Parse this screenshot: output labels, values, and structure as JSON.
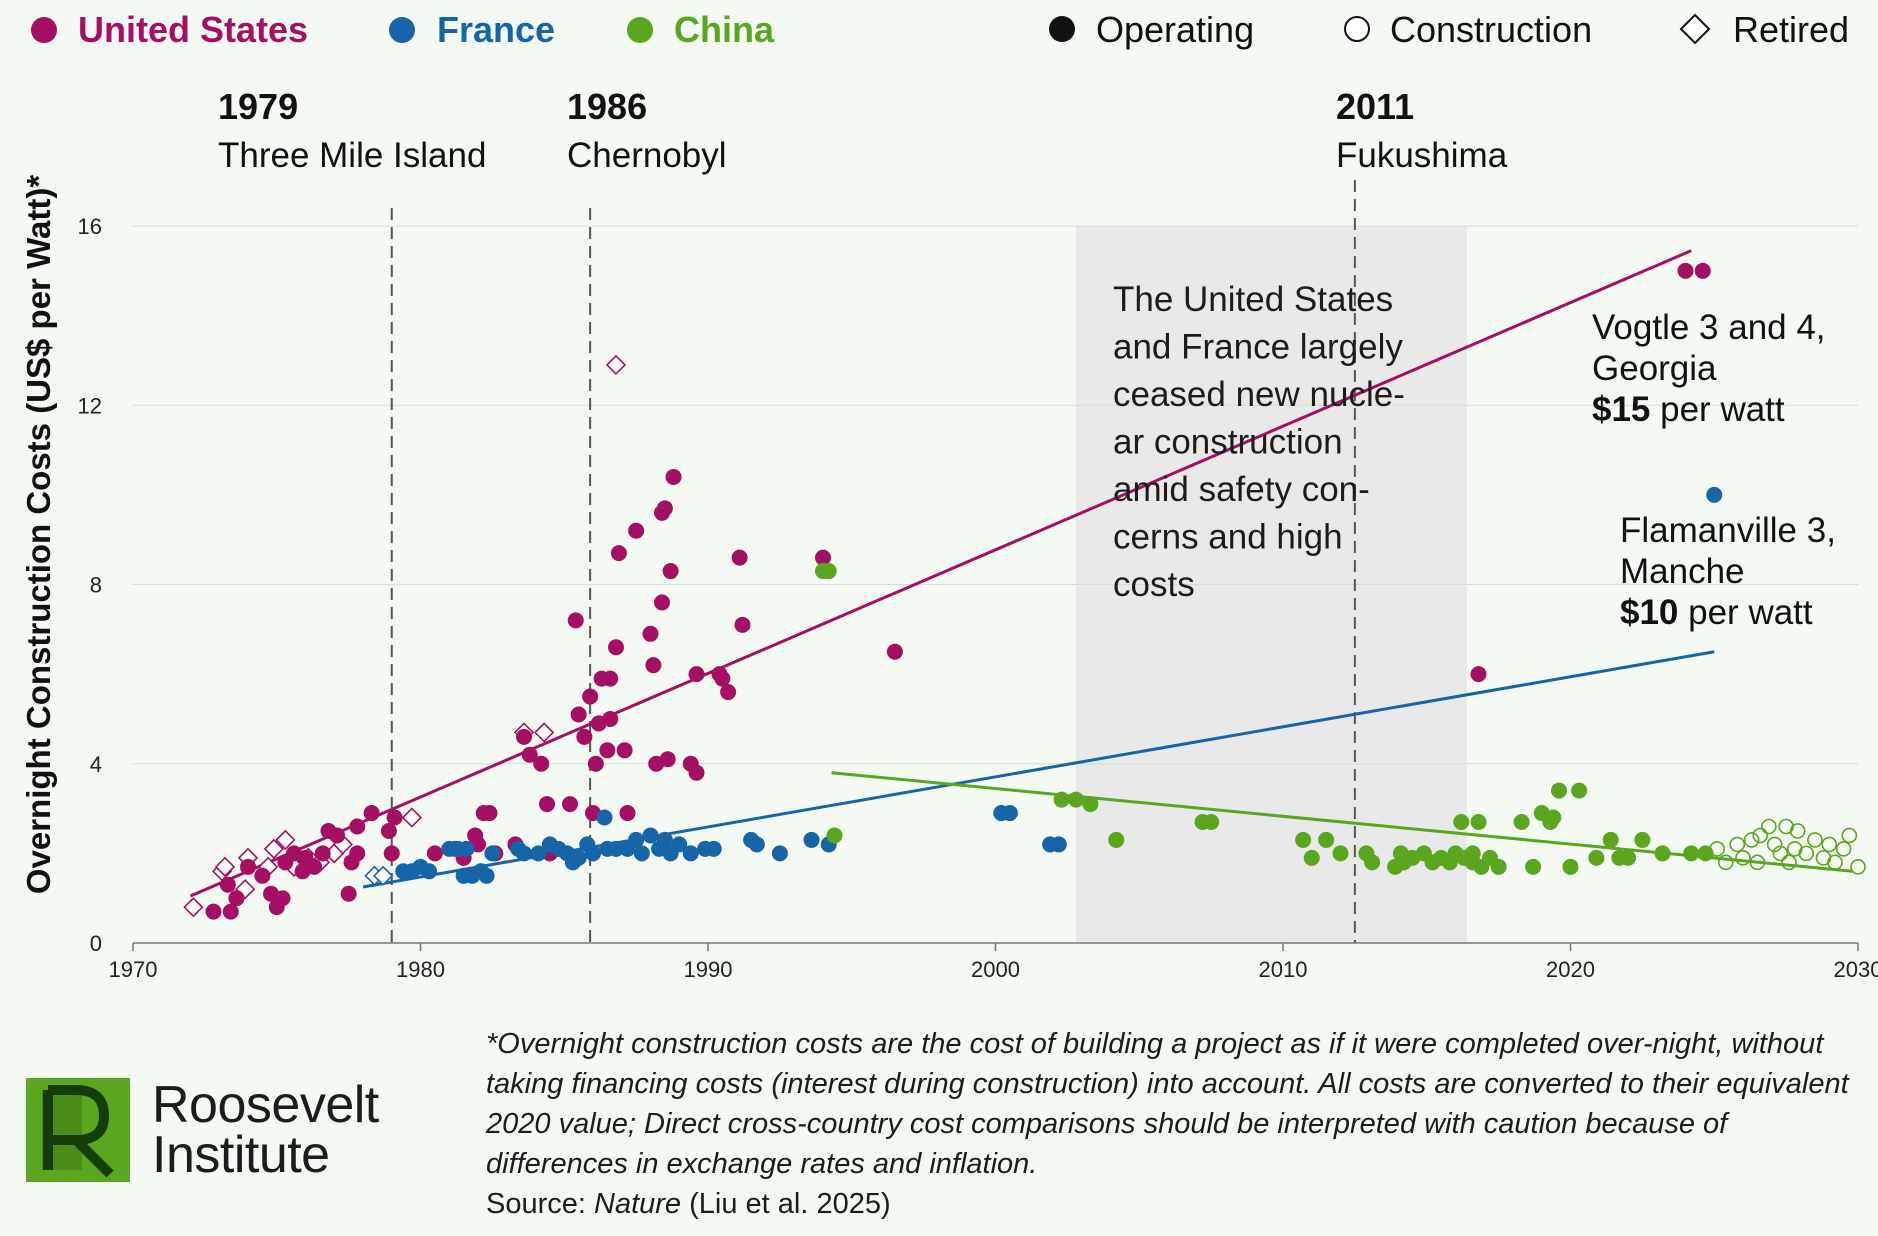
{
  "chart_data": {
    "type": "scatter",
    "ylabel": "Overnight Construction Costs (US$ per Watt)*",
    "xlim": [
      1970,
      2030
    ],
    "ylim": [
      0,
      16
    ],
    "x_ticks": [
      "1970",
      "1980",
      "1990",
      "2000",
      "2010",
      "2020",
      "2030"
    ],
    "y_ticks": [
      "0",
      "4",
      "8",
      "12",
      "16"
    ],
    "grid": true,
    "legend_countries": [
      {
        "name": "United States",
        "color": "#a50f63"
      },
      {
        "name": "France",
        "color": "#1565a8"
      },
      {
        "name": "China",
        "color": "#5aa61e"
      }
    ],
    "legend_status": [
      {
        "name": "Operating",
        "shape": "filled-circle"
      },
      {
        "name": "Construction",
        "shape": "open-circle"
      },
      {
        "name": "Retired",
        "shape": "diamond"
      }
    ],
    "events": [
      {
        "year": "1979",
        "label": "Three Mile Island",
        "x": 1979.0
      },
      {
        "year": "1986",
        "label": "Chernobyl",
        "x": 1985.9
      },
      {
        "year": "2011",
        "label": "Fukushima",
        "x": 2012.5
      }
    ],
    "shaded_period": {
      "x0": 2002.8,
      "x1": 2016.4
    },
    "shaded_text": [
      "The United States",
      "and France largely",
      "ceased new nucle-",
      "ar construction",
      "amid safety con-",
      "cerns and high",
      "costs"
    ],
    "annotations": [
      {
        "lines": [
          "Vogtle 3 and 4,",
          "Georgia"
        ],
        "bold": "$15",
        "rest": " per watt"
      },
      {
        "lines": [
          "Flamanville 3,",
          "Manche"
        ],
        "bold": "$10",
        "rest": " per watt"
      }
    ],
    "trend_lines": [
      {
        "name": "United States",
        "x": [
          1972.0,
          2024.2
        ],
        "y": [
          1.05,
          15.45
        ]
      },
      {
        "name": "France",
        "x": [
          1978.0,
          2025.0
        ],
        "y": [
          1.25,
          6.5
        ]
      },
      {
        "name": "China",
        "x": [
          1994.3,
          2029.8
        ],
        "y": [
          3.8,
          1.6
        ]
      }
    ],
    "series": [
      {
        "name": "United States",
        "status": "Operating",
        "points": [
          [
            1972.8,
            0.7
          ],
          [
            1973.4,
            0.7
          ],
          [
            1973.6,
            1.0
          ],
          [
            1973.3,
            1.3
          ],
          [
            1974.0,
            1.7
          ],
          [
            1974.5,
            1.5
          ],
          [
            1974.8,
            1.1
          ],
          [
            1975.0,
            0.8
          ],
          [
            1975.2,
            1.0
          ],
          [
            1975.3,
            1.8
          ],
          [
            1975.6,
            2.0
          ],
          [
            1975.9,
            1.6
          ],
          [
            1976.0,
            1.9
          ],
          [
            1976.3,
            1.7
          ],
          [
            1976.6,
            2.0
          ],
          [
            1976.8,
            2.5
          ],
          [
            1977.1,
            2.4
          ],
          [
            1977.5,
            1.1
          ],
          [
            1977.6,
            1.8
          ],
          [
            1977.8,
            2.0
          ],
          [
            1977.8,
            2.6
          ],
          [
            1978.3,
            2.9
          ],
          [
            1978.9,
            2.5
          ],
          [
            1979.0,
            2.0
          ],
          [
            1979.1,
            2.8
          ],
          [
            1980.5,
            2.0
          ],
          [
            1981.2,
            2.1
          ],
          [
            1981.5,
            1.9
          ],
          [
            1981.9,
            2.4
          ],
          [
            1982.0,
            2.2
          ],
          [
            1982.2,
            2.9
          ],
          [
            1982.4,
            2.9
          ],
          [
            1982.6,
            2.0
          ],
          [
            1983.3,
            2.2
          ],
          [
            1983.6,
            4.6
          ],
          [
            1983.8,
            4.2
          ],
          [
            1984.2,
            4.0
          ],
          [
            1984.4,
            3.1
          ],
          [
            1984.5,
            2.0
          ],
          [
            1985.2,
            3.1
          ],
          [
            1985.4,
            7.2
          ],
          [
            1985.5,
            5.1
          ],
          [
            1985.7,
            4.6
          ],
          [
            1985.9,
            5.5
          ],
          [
            1986.0,
            2.9
          ],
          [
            1986.1,
            4.0
          ],
          [
            1986.2,
            4.9
          ],
          [
            1986.3,
            5.9
          ],
          [
            1986.5,
            4.3
          ],
          [
            1986.6,
            5.0
          ],
          [
            1986.6,
            5.9
          ],
          [
            1986.8,
            6.6
          ],
          [
            1986.9,
            8.7
          ],
          [
            1987.1,
            4.3
          ],
          [
            1987.2,
            2.9
          ],
          [
            1987.5,
            9.2
          ],
          [
            1988.0,
            6.9
          ],
          [
            1988.1,
            6.2
          ],
          [
            1988.2,
            4.0
          ],
          [
            1988.4,
            9.6
          ],
          [
            1988.5,
            9.7
          ],
          [
            1988.4,
            7.6
          ],
          [
            1988.6,
            4.1
          ],
          [
            1988.7,
            8.3
          ],
          [
            1988.8,
            10.4
          ],
          [
            1989.4,
            4.0
          ],
          [
            1989.6,
            3.8
          ],
          [
            1989.6,
            6.0
          ],
          [
            1990.4,
            6.0
          ],
          [
            1990.5,
            5.9
          ],
          [
            1990.7,
            5.6
          ],
          [
            1991.1,
            8.6
          ],
          [
            1991.2,
            7.1
          ],
          [
            1994.0,
            8.6
          ],
          [
            1996.5,
            6.5
          ],
          [
            2016.8,
            6.0
          ],
          [
            2024.0,
            15.0
          ],
          [
            2024.6,
            15.0
          ]
        ]
      },
      {
        "name": "United States",
        "status": "Retired",
        "points": [
          [
            1972.1,
            0.8
          ],
          [
            1973.1,
            1.6
          ],
          [
            1973.2,
            1.7
          ],
          [
            1973.9,
            1.2
          ],
          [
            1974.0,
            1.9
          ],
          [
            1974.7,
            1.7
          ],
          [
            1974.9,
            2.1
          ],
          [
            1975.3,
            2.3
          ],
          [
            1975.6,
            1.7
          ],
          [
            1976.1,
            1.9
          ],
          [
            1976.5,
            1.8
          ],
          [
            1977.0,
            2.0
          ],
          [
            1977.3,
            2.2
          ],
          [
            1979.7,
            2.8
          ],
          [
            1983.6,
            4.7
          ],
          [
            1984.3,
            4.7
          ],
          [
            1986.8,
            12.9
          ]
        ]
      },
      {
        "name": "France",
        "status": "Operating",
        "points": [
          [
            1979.4,
            1.6
          ],
          [
            1979.7,
            1.6
          ],
          [
            1980.0,
            1.7
          ],
          [
            1980.3,
            1.6
          ],
          [
            1981.0,
            2.1
          ],
          [
            1981.3,
            2.1
          ],
          [
            1981.5,
            1.5
          ],
          [
            1981.6,
            2.1
          ],
          [
            1981.8,
            1.5
          ],
          [
            1982.1,
            1.6
          ],
          [
            1982.3,
            1.5
          ],
          [
            1982.5,
            2.0
          ],
          [
            1983.4,
            2.1
          ],
          [
            1983.6,
            2.0
          ],
          [
            1984.1,
            2.0
          ],
          [
            1984.5,
            2.2
          ],
          [
            1984.8,
            2.1
          ],
          [
            1985.1,
            2.0
          ],
          [
            1985.3,
            1.8
          ],
          [
            1985.5,
            1.9
          ],
          [
            1985.8,
            2.2
          ],
          [
            1986.0,
            2.0
          ],
          [
            1986.4,
            2.8
          ],
          [
            1986.5,
            2.1
          ],
          [
            1986.8,
            2.1
          ],
          [
            1987.2,
            2.1
          ],
          [
            1987.5,
            2.3
          ],
          [
            1987.7,
            2.0
          ],
          [
            1988.0,
            2.4
          ],
          [
            1988.3,
            2.1
          ],
          [
            1988.5,
            2.3
          ],
          [
            1988.7,
            2.0
          ],
          [
            1989.0,
            2.2
          ],
          [
            1989.4,
            2.0
          ],
          [
            1989.9,
            2.1
          ],
          [
            1990.2,
            2.1
          ],
          [
            1991.5,
            2.3
          ],
          [
            1991.7,
            2.2
          ],
          [
            1992.5,
            2.0
          ],
          [
            1993.6,
            2.3
          ],
          [
            1994.2,
            2.2
          ],
          [
            2000.2,
            2.9
          ],
          [
            2000.5,
            2.9
          ],
          [
            2001.9,
            2.2
          ],
          [
            2002.2,
            2.2
          ],
          [
            2025.0,
            10.0
          ]
        ]
      },
      {
        "name": "France",
        "status": "Retired",
        "points": [
          [
            1978.4,
            1.5
          ],
          [
            1978.7,
            1.5
          ]
        ]
      },
      {
        "name": "China",
        "status": "Operating",
        "points": [
          [
            1994.0,
            8.3
          ],
          [
            1994.2,
            8.3
          ],
          [
            1994.4,
            2.4
          ],
          [
            2002.3,
            3.2
          ],
          [
            2002.8,
            3.2
          ],
          [
            2003.3,
            3.1
          ],
          [
            2004.2,
            2.3
          ],
          [
            2007.2,
            2.7
          ],
          [
            2007.5,
            2.7
          ],
          [
            2010.7,
            2.3
          ],
          [
            2011.0,
            1.9
          ],
          [
            2011.5,
            2.3
          ],
          [
            2012.0,
            2.0
          ],
          [
            2012.9,
            2.0
          ],
          [
            2013.1,
            1.8
          ],
          [
            2013.9,
            1.7
          ],
          [
            2014.1,
            2.0
          ],
          [
            2014.2,
            1.8
          ],
          [
            2014.5,
            1.9
          ],
          [
            2014.9,
            2.0
          ],
          [
            2015.2,
            1.8
          ],
          [
            2015.5,
            1.9
          ],
          [
            2015.8,
            1.8
          ],
          [
            2016.0,
            2.0
          ],
          [
            2016.3,
            1.9
          ],
          [
            2016.6,
            1.8
          ],
          [
            2016.6,
            2.0
          ],
          [
            2016.9,
            1.7
          ],
          [
            2017.2,
            1.9
          ],
          [
            2017.5,
            1.7
          ],
          [
            2016.2,
            2.7
          ],
          [
            2016.8,
            2.7
          ],
          [
            2018.3,
            2.7
          ],
          [
            2018.7,
            1.7
          ],
          [
            2019.0,
            2.9
          ],
          [
            2019.3,
            2.7
          ],
          [
            2019.4,
            2.8
          ],
          [
            2019.6,
            3.4
          ],
          [
            2020.0,
            1.7
          ],
          [
            2020.3,
            3.4
          ],
          [
            2020.9,
            1.9
          ],
          [
            2021.4,
            2.3
          ],
          [
            2021.7,
            1.9
          ],
          [
            2022.0,
            1.9
          ],
          [
            2022.5,
            2.3
          ],
          [
            2023.2,
            2.0
          ],
          [
            2024.2,
            2.0
          ],
          [
            2024.7,
            2.0
          ]
        ]
      },
      {
        "name": "China",
        "status": "Construction",
        "points": [
          [
            2025.1,
            2.1
          ],
          [
            2025.4,
            1.8
          ],
          [
            2025.8,
            2.2
          ],
          [
            2026.0,
            1.9
          ],
          [
            2026.3,
            2.3
          ],
          [
            2026.6,
            2.4
          ],
          [
            2026.9,
            2.6
          ],
          [
            2027.1,
            2.2
          ],
          [
            2027.3,
            2.0
          ],
          [
            2027.5,
            2.6
          ],
          [
            2027.8,
            2.1
          ],
          [
            2027.9,
            2.5
          ],
          [
            2028.2,
            2.0
          ],
          [
            2028.5,
            2.3
          ],
          [
            2028.8,
            1.9
          ],
          [
            2029.0,
            2.2
          ],
          [
            2029.2,
            1.8
          ],
          [
            2029.5,
            2.1
          ],
          [
            2029.7,
            2.4
          ],
          [
            2030.0,
            1.7
          ],
          [
            2026.5,
            1.8
          ],
          [
            2027.6,
            1.8
          ]
        ]
      }
    ]
  },
  "footnote": {
    "note": "*Overnight construction costs are the cost of building a project as if it were completed over-night, without taking financing costs (interest during construction) into account. All costs are converted to their equivalent 2020 value; Direct cross-country cost comparisons should be interpreted with caution because of differences in exchange rates and inflation.",
    "source_prefix": "Source: ",
    "source_italic": "Nature",
    "source_suffix": " (Liu et al. 2025)"
  },
  "logo": {
    "line1": "Roosevelt",
    "line2": "Institute",
    "mark_color": "#5aa61e"
  }
}
